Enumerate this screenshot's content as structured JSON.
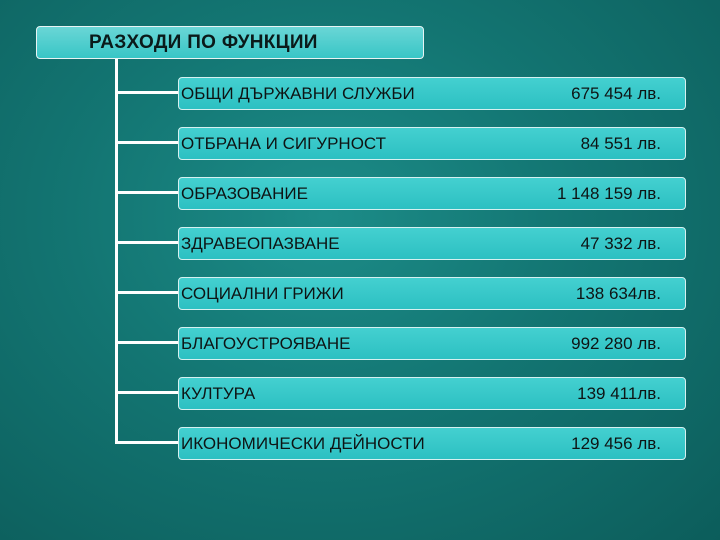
{
  "title": "РАЗХОДИ ПО ФУНКЦИИ",
  "rows": [
    {
      "label": "ОБЩИ ДЪРЖАВНИ СЛУЖБИ",
      "value": "675 454 лв."
    },
    {
      "label": "ОТБРАНА И СИГУРНОСТ",
      "value": "84 551 лв."
    },
    {
      "label": "ОБРАЗОВАНИЕ",
      "value": "1 148 159 лв."
    },
    {
      "label": "ЗДРАВЕОПАЗВАНЕ",
      "value": "47 332 лв."
    },
    {
      "label": "СОЦИАЛНИ ГРИЖИ",
      "value": "138 634лв."
    },
    {
      "label": "БЛАГОУСТРОЯВАНЕ",
      "value": "992 280 лв."
    },
    {
      "label": "КУЛТУРА",
      "value": "139 411лв."
    },
    {
      "label": "ИКОНОМИЧЕСКИ ДЕЙНОСТИ",
      "value": "129 456 лв."
    }
  ]
}
